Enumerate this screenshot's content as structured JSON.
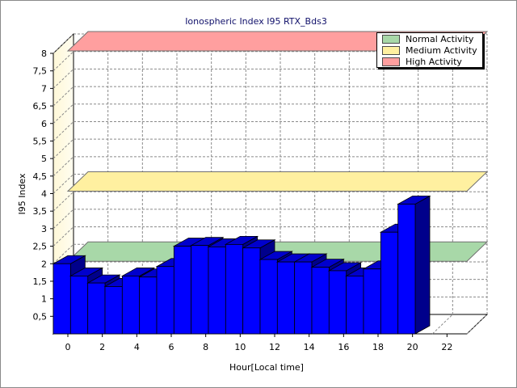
{
  "chart_data": {
    "type": "bar",
    "title": "Ionospheric Index I95 RTX_Bds3",
    "xlabel": "Hour[Local time]",
    "ylabel": "I95 Index",
    "ylim": [
      0,
      8
    ],
    "xlim": [
      0,
      24
    ],
    "x_ticks": [
      "0",
      "2",
      "4",
      "6",
      "8",
      "10",
      "12",
      "14",
      "16",
      "18",
      "20",
      "22"
    ],
    "y_ticks": [
      "0,5",
      "1",
      "1,5",
      "2",
      "2,5",
      "3",
      "3,5",
      "4",
      "4,5",
      "5",
      "5,5",
      "6",
      "6,5",
      "7",
      "7,5",
      "8"
    ],
    "categories": [
      0,
      1,
      2,
      3,
      4,
      5,
      6,
      7,
      8,
      9,
      10,
      11,
      12,
      13,
      14,
      15,
      16,
      17,
      18,
      19,
      20
    ],
    "values": [
      2.0,
      1.65,
      1.45,
      1.35,
      1.65,
      1.62,
      1.92,
      2.5,
      2.52,
      2.48,
      2.55,
      2.45,
      2.12,
      2.05,
      2.05,
      1.9,
      1.8,
      1.65,
      1.85,
      2.9,
      3.7
    ],
    "bar_color": "#0000ff",
    "activity_bands": [
      {
        "name": "Normal Activity",
        "value": 2.0,
        "color": "#a8d8a8"
      },
      {
        "name": "Medium Activity",
        "value": 4.0,
        "color": "#fff0a0"
      },
      {
        "name": "High Activity",
        "value": 8.0,
        "color": "#ff9f9f"
      }
    ],
    "legend_position": "top-right",
    "grid": true
  }
}
